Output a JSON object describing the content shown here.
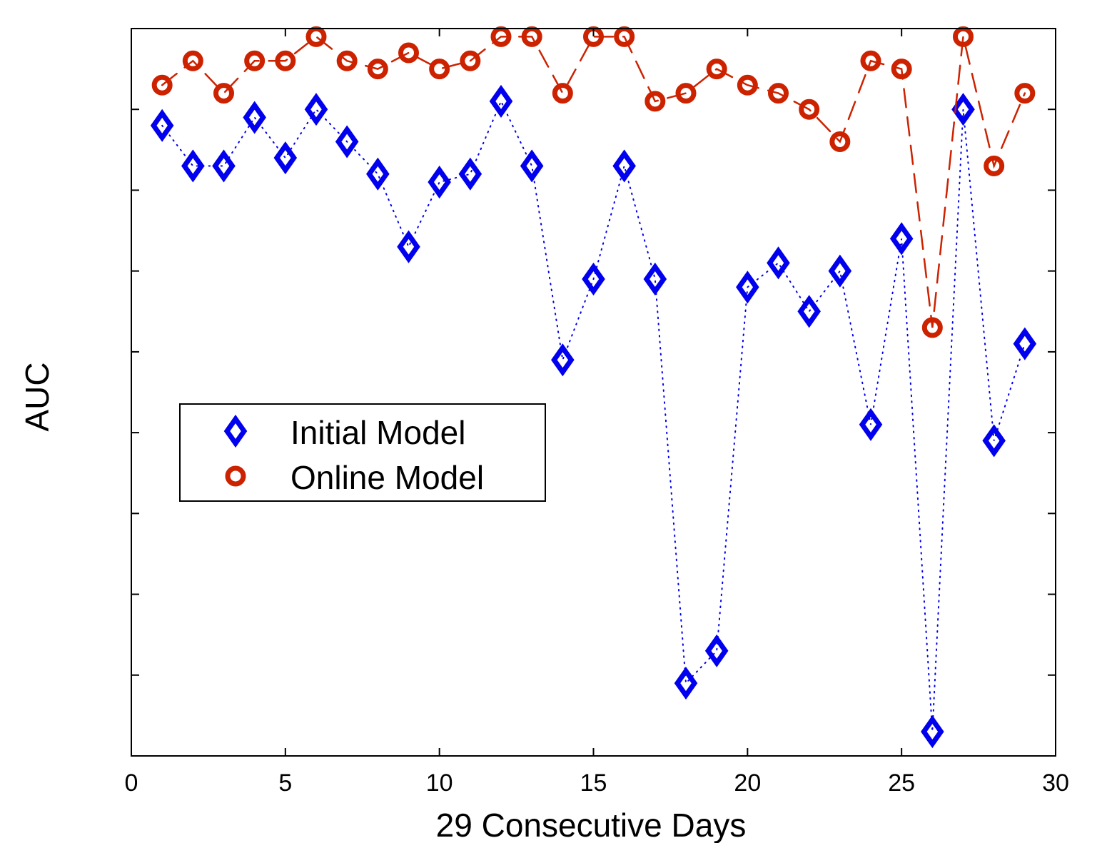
{
  "chart_data": {
    "type": "line",
    "title": "",
    "xlabel": "29 Consecutive Days",
    "ylabel": "AUC",
    "xlim": [
      0,
      30
    ],
    "ylim": [
      0,
      9
    ],
    "x_ticks": [
      0,
      5,
      10,
      15,
      20,
      25,
      30
    ],
    "x_tick_labels": [
      "0",
      "5",
      "10",
      "15",
      "20",
      "25",
      "30"
    ],
    "y_ticks": [
      1,
      2,
      3,
      4,
      5,
      6,
      7,
      8
    ],
    "y_tick_labels": [],
    "grid": false,
    "legend_position": "center-left",
    "x": [
      1,
      2,
      3,
      4,
      5,
      6,
      7,
      8,
      9,
      10,
      11,
      12,
      13,
      14,
      15,
      16,
      17,
      18,
      19,
      20,
      21,
      22,
      23,
      24,
      25,
      26,
      27,
      28,
      29
    ],
    "series": [
      {
        "name": "Initial Model",
        "color": "#0000ee",
        "marker": "diamond",
        "line_style": "dotted",
        "values": [
          7.8,
          7.3,
          7.3,
          7.9,
          7.4,
          8.0,
          7.6,
          7.2,
          6.3,
          7.1,
          7.2,
          8.1,
          7.3,
          4.9,
          5.9,
          7.3,
          5.9,
          0.9,
          1.3,
          5.8,
          6.1,
          5.5,
          6.0,
          4.1,
          6.4,
          0.3,
          8.0,
          3.9,
          5.1
        ]
      },
      {
        "name": "Online Model",
        "color": "#cc2200",
        "marker": "circle",
        "line_style": "dashed",
        "values": [
          8.3,
          8.6,
          8.2,
          8.6,
          8.6,
          8.9,
          8.6,
          8.5,
          8.7,
          8.5,
          8.6,
          8.9,
          8.9,
          8.2,
          8.9,
          8.9,
          8.1,
          8.2,
          8.5,
          8.3,
          8.2,
          8.0,
          7.6,
          8.6,
          8.5,
          5.3,
          8.9,
          7.3,
          8.2
        ]
      }
    ]
  }
}
